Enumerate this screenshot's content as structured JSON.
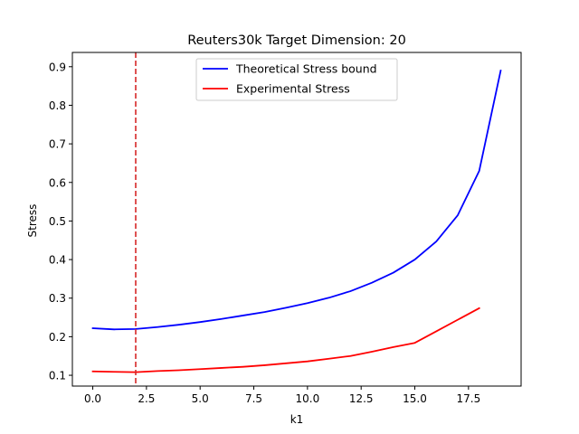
{
  "chart_data": {
    "type": "line",
    "title": "Reuters30k Target Dimension: 20",
    "xlabel": "k1",
    "ylabel": "Stress",
    "xlim": [
      -0.95,
      19.95
    ],
    "ylim": [
      0.072,
      0.937
    ],
    "xticks": [
      0,
      2.5,
      5,
      7.5,
      10,
      12.5,
      15,
      17.5
    ],
    "xtick_labels": [
      "0.0",
      "2.5",
      "5.0",
      "7.5",
      "10.0",
      "12.5",
      "15.0",
      "17.5"
    ],
    "yticks": [
      0.1,
      0.2,
      0.3,
      0.4,
      0.5,
      0.6,
      0.7,
      0.8,
      0.9
    ],
    "ytick_labels": [
      "0.1",
      "0.2",
      "0.3",
      "0.4",
      "0.5",
      "0.6",
      "0.7",
      "0.8",
      "0.9"
    ],
    "vline": {
      "x": 2,
      "color": "#d62728",
      "style": "dashed"
    },
    "legend_position": "upper center",
    "series": [
      {
        "name": "Theoretical Stress bound",
        "color": "#0000ff",
        "x": [
          0,
          1,
          2,
          3,
          4,
          5,
          6,
          7,
          8,
          9,
          10,
          11,
          12,
          13,
          14,
          15,
          16,
          17,
          18,
          19
        ],
        "y": [
          0.222,
          0.219,
          0.22,
          0.225,
          0.231,
          0.238,
          0.246,
          0.255,
          0.264,
          0.275,
          0.287,
          0.301,
          0.318,
          0.34,
          0.366,
          0.4,
          0.447,
          0.515,
          0.63,
          0.89
        ]
      },
      {
        "name": "Experimental Stress",
        "color": "#ff0000",
        "x": [
          0,
          1,
          2,
          3,
          4,
          5,
          6,
          7,
          8,
          9,
          10,
          11,
          12,
          13,
          14,
          15,
          16,
          17,
          18
        ],
        "y": [
          0.11,
          0.109,
          0.108,
          0.111,
          0.113,
          0.116,
          0.119,
          0.122,
          0.126,
          0.131,
          0.136,
          0.143,
          0.15,
          0.161,
          0.173,
          0.184,
          0.214,
          0.244,
          0.274
        ]
      }
    ]
  }
}
